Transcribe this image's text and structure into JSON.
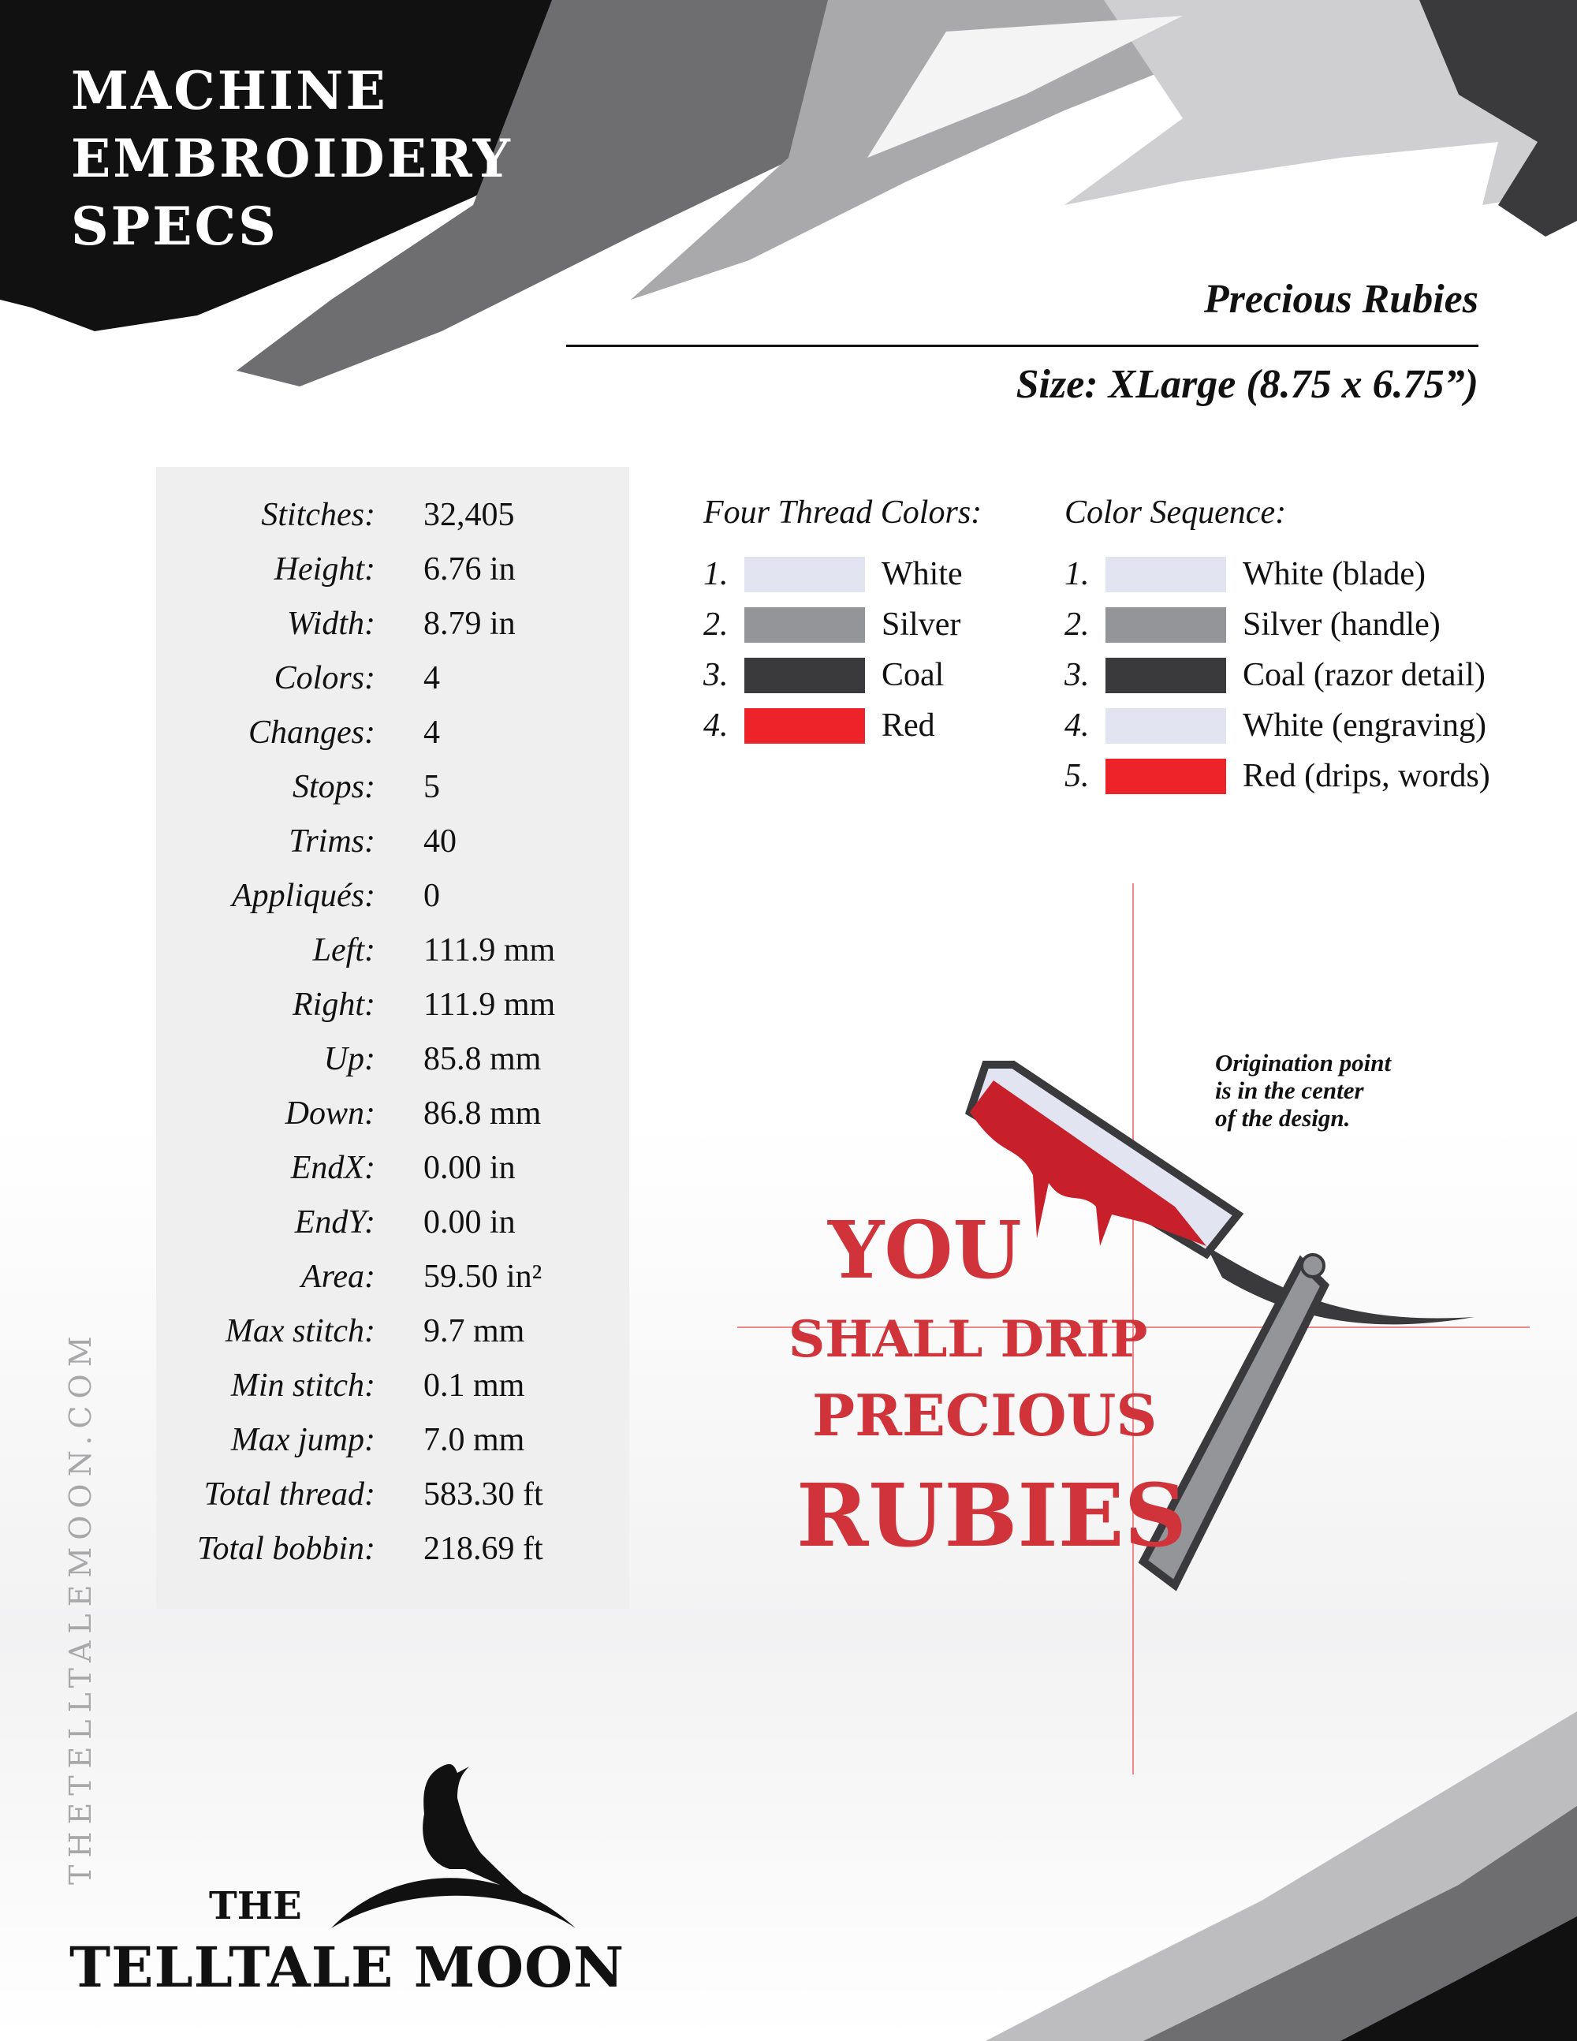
{
  "header": {
    "title_lines": [
      "MACHINE",
      "EMBROIDERY",
      "SPECS"
    ],
    "design_name": "Precious Rubies",
    "size": "Size: XLarge (8.75 x 6.75”)"
  },
  "specs": [
    {
      "label": "Stitches:",
      "value": "32,405"
    },
    {
      "label": "Height:",
      "value": "6.76 in"
    },
    {
      "label": "Width:",
      "value": "8.79 in"
    },
    {
      "label": "Colors:",
      "value": "4"
    },
    {
      "label": "Changes:",
      "value": "4"
    },
    {
      "label": "Stops:",
      "value": "5"
    },
    {
      "label": "Trims:",
      "value": "40"
    },
    {
      "label": "Appliqués:",
      "value": "0"
    },
    {
      "label": "Left:",
      "value": "111.9 mm"
    },
    {
      "label": "Right:",
      "value": "111.9 mm"
    },
    {
      "label": "Up:",
      "value": "85.8 mm"
    },
    {
      "label": "Down:",
      "value": "86.8 mm"
    },
    {
      "label": "EndX:",
      "value": "0.00 in"
    },
    {
      "label": "EndY:",
      "value": "0.00 in"
    },
    {
      "label": "Area:",
      "value": "59.50 in²"
    },
    {
      "label": "Max stitch:",
      "value": "9.7 mm"
    },
    {
      "label": "Min stitch:",
      "value": "0.1 mm"
    },
    {
      "label": "Max jump:",
      "value": "7.0 mm"
    },
    {
      "label": "Total thread:",
      "value": "583.30 ft"
    },
    {
      "label": "Total bobbin:",
      "value": "218.69 ft"
    }
  ],
  "thread_colors": {
    "heading": "Four Thread Colors:",
    "items": [
      {
        "num": "1.",
        "name": "White",
        "color": "#e3e4f2"
      },
      {
        "num": "2.",
        "name": "Silver",
        "color": "#939598"
      },
      {
        "num": "3.",
        "name": "Coal",
        "color": "#3a3a3c"
      },
      {
        "num": "4.",
        "name": "Red",
        "color": "#ee2229"
      }
    ]
  },
  "color_sequence": {
    "heading": "Color Sequence:",
    "items": [
      {
        "num": "1.",
        "name": "White (blade)",
        "color": "#e3e4f2"
      },
      {
        "num": "2.",
        "name": "Silver (handle)",
        "color": "#939598"
      },
      {
        "num": "3.",
        "name": "Coal (razor detail)",
        "color": "#3a3a3c"
      },
      {
        "num": "4.",
        "name": "White (engraving)",
        "color": "#e3e4f2"
      },
      {
        "num": "5.",
        "name": "Red (drips, words)",
        "color": "#ee2229"
      }
    ]
  },
  "design": {
    "text_lines": [
      "YOU",
      "SHALL DRIP",
      "PRECIOUS",
      "RUBIES"
    ],
    "origination_note": [
      "Origination point",
      "is in the center",
      "of the design."
    ]
  },
  "side_text": "THETELLTALEMOON.COM",
  "logo": {
    "the": "THE",
    "name": "TELLTALE MOON"
  }
}
